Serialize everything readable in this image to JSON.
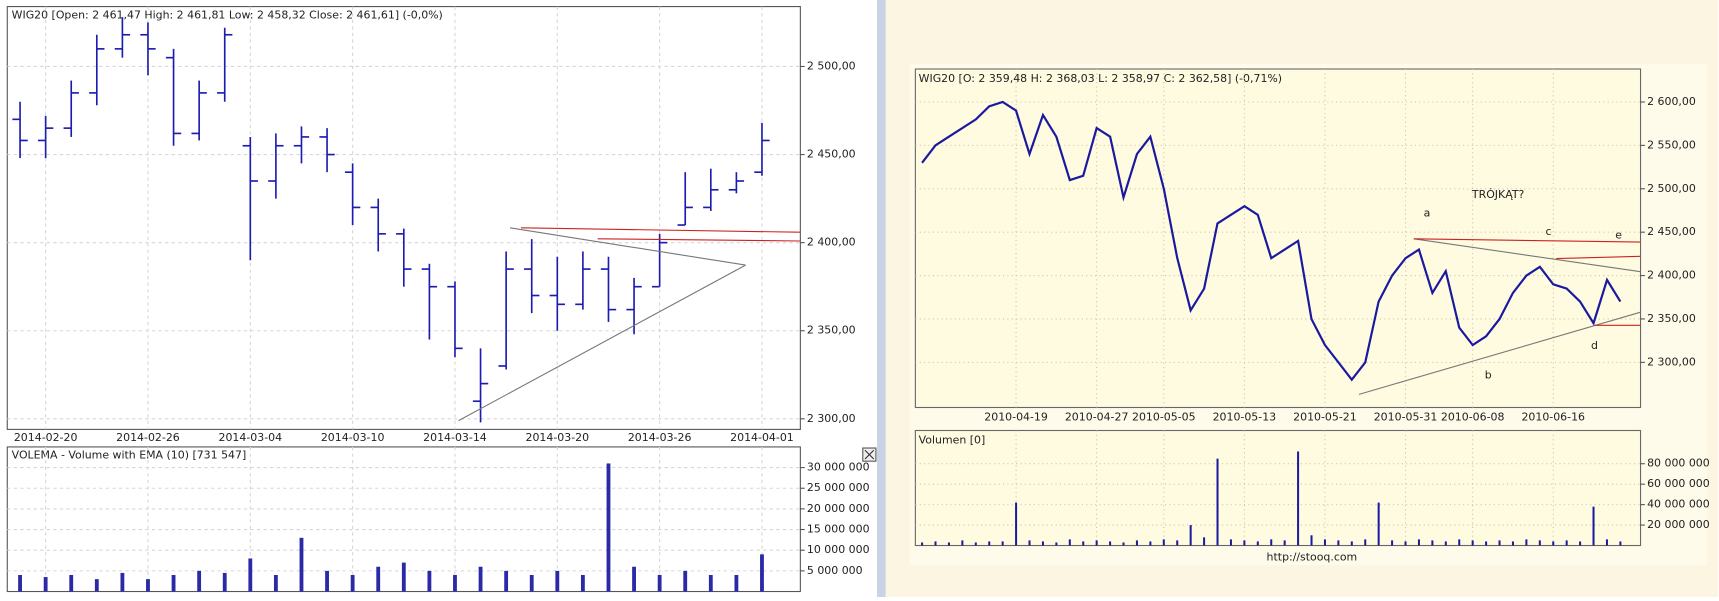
{
  "chart_data": [
    {
      "type": "ohlc",
      "title": "WIG20 [Open: 2 461,47  High: 2 461,81  Low: 2 458,32  Close: 2 461,61]  (-0,0%)",
      "categories": [
        null,
        "2014-02-20",
        null,
        null,
        null,
        "2014-02-26",
        null,
        null,
        null,
        "2014-03-04",
        null,
        null,
        null,
        "2014-03-10",
        null,
        null,
        null,
        "2014-03-14",
        null,
        null,
        null,
        "2014-03-20",
        null,
        null,
        null,
        "2014-03-26",
        null,
        null,
        null,
        "2014-04-01"
      ],
      "open": [
        2470,
        2458,
        2465,
        2485,
        2510,
        2518,
        2505,
        2462,
        2485,
        2455,
        2435,
        2455,
        2460,
        2440,
        2420,
        2405,
        2385,
        2375,
        2310,
        2330,
        2385,
        2370,
        2365,
        2385,
        2362,
        2375,
        2410,
        2420,
        2430,
        2440
      ],
      "high": [
        2480,
        2472,
        2492,
        2518,
        2528,
        2525,
        2510,
        2492,
        2522,
        2460,
        2462,
        2466,
        2465,
        2445,
        2425,
        2408,
        2388,
        2378,
        2340,
        2395,
        2402,
        2392,
        2395,
        2392,
        2380,
        2405,
        2440,
        2442,
        2440,
        2468
      ],
      "low": [
        2448,
        2448,
        2460,
        2478,
        2505,
        2495,
        2455,
        2458,
        2480,
        2390,
        2425,
        2445,
        2440,
        2410,
        2395,
        2375,
        2345,
        2335,
        2298,
        2328,
        2360,
        2350,
        2362,
        2355,
        2348,
        2375,
        2410,
        2418,
        2428,
        2438
      ],
      "close": [
        2458,
        2465,
        2485,
        2510,
        2518,
        2510,
        2462,
        2485,
        2518,
        2435,
        2455,
        2460,
        2450,
        2420,
        2405,
        2385,
        2375,
        2340,
        2320,
        2385,
        2370,
        2365,
        2385,
        2362,
        2375,
        2400,
        2420,
        2430,
        2435,
        2458
      ],
      "color": "#1c1cb0",
      "ylim": [
        2294,
        2534
      ],
      "yticks": [
        {
          "value": 2300,
          "label": "2 300,00"
        },
        {
          "value": 2350,
          "label": "2 350,00"
        },
        {
          "value": 2400,
          "label": "2 400,00"
        },
        {
          "value": 2450,
          "label": "2 450,00"
        },
        {
          "value": 2500,
          "label": "2 500,00"
        }
      ],
      "grid": true
    },
    {
      "type": "bar",
      "title": "VOLEMA - Volume with EMA (10) [731 547]",
      "values": [
        4000000,
        3500000,
        4000000,
        3000000,
        4500000,
        3000000,
        4000000,
        5000000,
        4500000,
        8000000,
        4000000,
        13000000,
        5000000,
        4000000,
        6000000,
        7000000,
        5000000,
        4000000,
        6000000,
        5000000,
        4000000,
        5000000,
        4000000,
        31000000,
        6000000,
        4000000,
        5000000,
        4000000,
        4000000,
        9000000
      ],
      "color": "#2a2aa8",
      "ylim": [
        0,
        35000000
      ],
      "yticks": [
        {
          "value": 5000000,
          "label": "5 000 000"
        },
        {
          "value": 10000000,
          "label": "10 000 000"
        },
        {
          "value": 15000000,
          "label": "15 000 000"
        },
        {
          "value": 20000000,
          "label": "20 000 000"
        },
        {
          "value": 25000000,
          "label": "25 000 000"
        },
        {
          "value": 30000000,
          "label": "30 000 000"
        }
      ],
      "grid": true
    },
    {
      "type": "line",
      "title": "WIG20 [O: 2 359,48  H: 2 368,03  L: 2 358,97  C: 2 362,58] (-0,71%)",
      "categories": [
        null,
        null,
        null,
        null,
        null,
        null,
        null,
        "2010-04-19",
        null,
        null,
        null,
        null,
        null,
        "2010-04-27",
        null,
        null,
        null,
        null,
        "2010-05-05",
        null,
        null,
        null,
        null,
        null,
        "2010-05-13",
        null,
        null,
        null,
        null,
        null,
        "2010-05-21",
        null,
        null,
        null,
        null,
        null,
        "2010-05-31",
        null,
        null,
        null,
        null,
        "2010-06-08",
        null,
        null,
        null,
        null,
        null,
        "2010-06-16",
        null,
        null,
        null,
        null,
        null
      ],
      "values": [
        2530,
        2550,
        2560,
        2570,
        2580,
        2595,
        2600,
        2590,
        2540,
        2585,
        2560,
        2510,
        2515,
        2570,
        2560,
        2490,
        2540,
        2560,
        2500,
        2420,
        2360,
        2385,
        2460,
        2470,
        2480,
        2470,
        2420,
        2430,
        2440,
        2350,
        2320,
        2300,
        2280,
        2300,
        2370,
        2400,
        2420,
        2430,
        2380,
        2405,
        2340,
        2320,
        2330,
        2350,
        2380,
        2400,
        2410,
        2390,
        2385,
        2370,
        2345,
        2395,
        2370
      ],
      "color": "#1a1aa0",
      "ylim": [
        2248,
        2638
      ],
      "yticks": [
        {
          "value": 2300,
          "label": "2 300,00"
        },
        {
          "value": 2350,
          "label": "2 350,00"
        },
        {
          "value": 2400,
          "label": "2 400,00"
        },
        {
          "value": 2450,
          "label": "2 450,00"
        },
        {
          "value": 2500,
          "label": "2 500,00"
        },
        {
          "value": 2550,
          "label": "2 550,00"
        },
        {
          "value": 2600,
          "label": "2 600,00"
        }
      ],
      "grid": true,
      "annotations": [
        "a",
        "b",
        "c",
        "d",
        "e",
        "TRÓJKĄT?"
      ]
    },
    {
      "type": "bar",
      "title": "Volumen [0]",
      "values": [
        3000000,
        4000000,
        3000000,
        5000000,
        3000000,
        4000000,
        4000000,
        42000000,
        5000000,
        4000000,
        3000000,
        6000000,
        4000000,
        5000000,
        4000000,
        3000000,
        5000000,
        4000000,
        6000000,
        5000000,
        20000000,
        8000000,
        85000000,
        6000000,
        5000000,
        4000000,
        6000000,
        5000000,
        92000000,
        10000000,
        6000000,
        5000000,
        4000000,
        6000000,
        42000000,
        5000000,
        4000000,
        6000000,
        5000000,
        4000000,
        6000000,
        5000000,
        4000000,
        5000000,
        4000000,
        6000000,
        5000000,
        4000000,
        5000000,
        4000000,
        38000000,
        6000000,
        4000000
      ],
      "color": "#1a1aa0",
      "ylim": [
        0,
        112500000
      ],
      "yticks": [
        {
          "value": 20000000,
          "label": "20 000 000"
        },
        {
          "value": 40000000,
          "label": "40 000 000"
        },
        {
          "value": 60000000,
          "label": "60 000 000"
        },
        {
          "value": 80000000,
          "label": "80 000 000"
        }
      ],
      "grid": true,
      "source": "http://stooq.com"
    }
  ]
}
